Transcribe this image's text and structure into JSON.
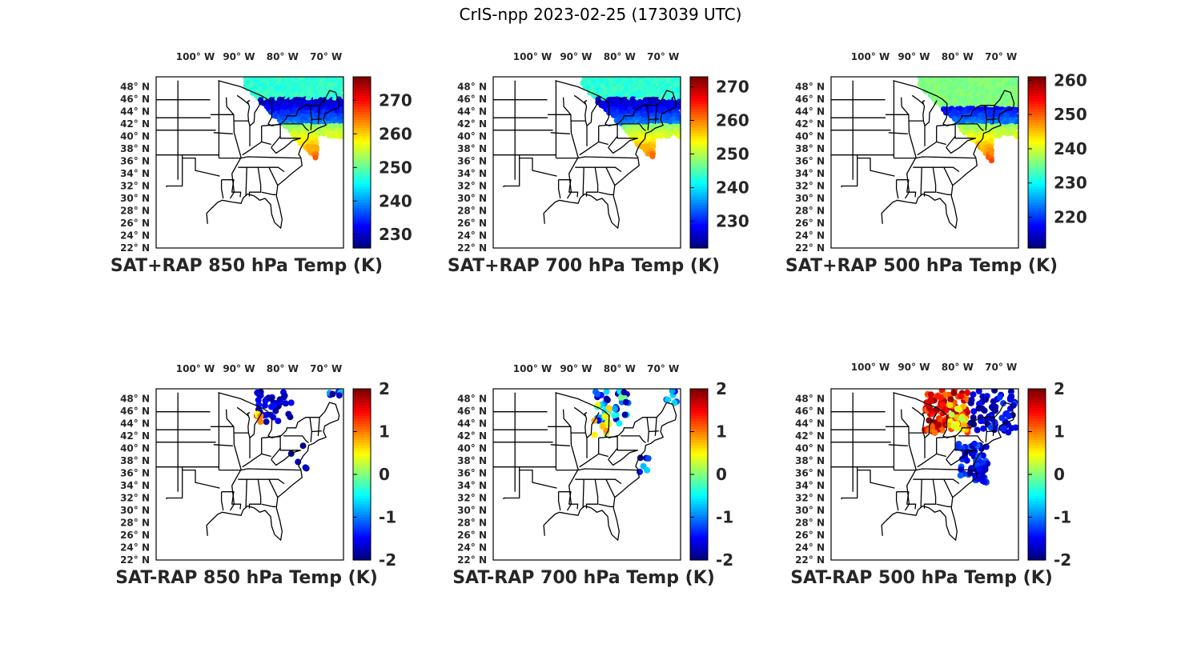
{
  "title": "CrIS-npp 2023-02-25 (173039 UTC)",
  "lon_ticks": [
    "100° W",
    "90° W",
    "80° W",
    "70° W"
  ],
  "lat_ticks": [
    "48° N",
    "46° N",
    "44° N",
    "42° N",
    "40° N",
    "38° N",
    "36° N",
    "34° N",
    "32° N",
    "30° N",
    "28° N",
    "26° N",
    "24° N",
    "22° N"
  ],
  "colormap": "jet",
  "colors": {
    "frame": "#000000",
    "text": "#262626",
    "background": "#ffffff"
  },
  "panels": [
    {
      "id": "sat-rap-850",
      "caption": "SAT+RAP 850 hPa Temp (K)",
      "colorbar": {
        "min": 226,
        "max": 277,
        "ticks": [
          "230",
          "240",
          "250",
          "260",
          "270"
        ]
      }
    },
    {
      "id": "sat-rap-700",
      "caption": "SAT+RAP 700 hPa Temp (K)",
      "colorbar": {
        "min": 222,
        "max": 273,
        "ticks": [
          "230",
          "240",
          "250",
          "260",
          "270"
        ]
      }
    },
    {
      "id": "sat-rap-500",
      "caption": "SAT+RAP 500 hPa Temp (K)",
      "colorbar": {
        "min": 211,
        "max": 261,
        "ticks": [
          "220",
          "230",
          "240",
          "250",
          "260"
        ]
      }
    },
    {
      "id": "sat-minus-rap-850",
      "caption": "SAT-RAP 850 hPa Temp (K)",
      "colorbar": {
        "min": -2,
        "max": 2,
        "ticks": [
          "-2",
          "-1",
          "0",
          "1",
          "2"
        ]
      }
    },
    {
      "id": "sat-minus-rap-700",
      "caption": "SAT-RAP 700 hPa Temp (K)",
      "colorbar": {
        "min": -2,
        "max": 2,
        "ticks": [
          "-2",
          "-1",
          "0",
          "1",
          "2"
        ]
      }
    },
    {
      "id": "sat-minus-rap-500",
      "caption": "SAT-RAP 500 hPa Temp (K)",
      "colorbar": {
        "min": -2,
        "max": 2,
        "ticks": [
          "-2",
          "-1",
          "0",
          "1",
          "2"
        ]
      }
    }
  ]
}
